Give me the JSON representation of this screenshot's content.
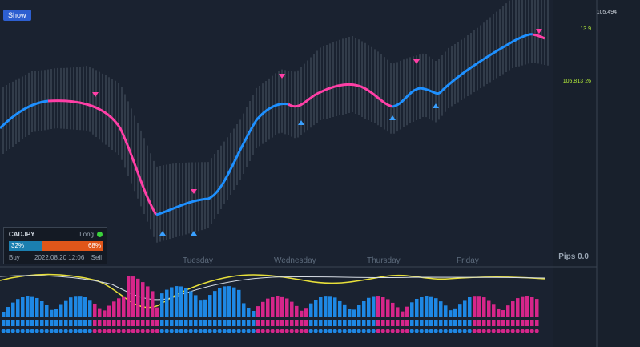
{
  "toolbar": {
    "button": "Show"
  },
  "days": [
    "Tuesday",
    "Wednesday",
    "Thursday",
    "Friday"
  ],
  "panel": {
    "symbol": "CADJPY",
    "direction": "Long",
    "buy_pct": "32%",
    "sell_pct": "68%",
    "buy": "Buy",
    "sell": "Sell",
    "time": "2022.08.20 12:06"
  },
  "pips": "Pips 0.0",
  "side_panel": {
    "ask": "105.494",
    "spread": "13.9",
    "price": "105.813",
    "count": "26"
  }
}
